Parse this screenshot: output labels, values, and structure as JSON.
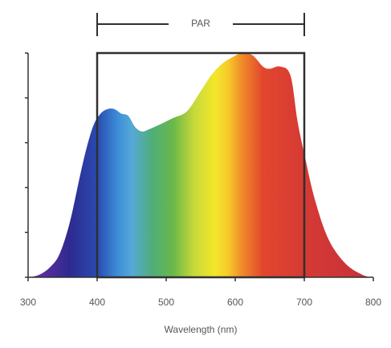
{
  "chart_data": {
    "type": "area",
    "title": "",
    "xlabel": "Wavelength (nm)",
    "ylabel": "",
    "xlim": [
      300,
      800
    ],
    "ylim": [
      0,
      1
    ],
    "xticks": [
      300,
      400,
      500,
      600,
      700,
      800
    ],
    "tick_labels": [
      "300",
      "400",
      "500",
      "600",
      "700",
      "800"
    ],
    "ytick_count": 6,
    "grid": false,
    "legend": "none",
    "par_band": {
      "label": "PAR",
      "range": [
        400,
        700
      ]
    },
    "series": [
      {
        "x": [
          300,
          315,
          330,
          345,
          360,
          375,
          385,
          395,
          405,
          415,
          425,
          435,
          445,
          455,
          465,
          475,
          490,
          510,
          530,
          550,
          565,
          580,
          595,
          610,
          625,
          640,
          650,
          665,
          680,
          690,
          700,
          715,
          735,
          760,
          785,
          800
        ],
        "y": [
          0.0,
          0.01,
          0.04,
          0.1,
          0.24,
          0.45,
          0.58,
          0.68,
          0.73,
          0.75,
          0.75,
          0.73,
          0.72,
          0.67,
          0.65,
          0.66,
          0.68,
          0.71,
          0.74,
          0.83,
          0.9,
          0.95,
          0.98,
          1.0,
          0.99,
          0.94,
          0.93,
          0.94,
          0.9,
          0.7,
          0.55,
          0.35,
          0.17,
          0.06,
          0.01,
          0.0
        ]
      }
    ],
    "colors": {
      "axis": "#333333",
      "par_box": "#2f2f2f",
      "tick_text": "#555555",
      "spectrum": [
        {
          "nm": 300,
          "color": "#7a2ea6"
        },
        {
          "nm": 360,
          "color": "#2d2a8f"
        },
        {
          "nm": 400,
          "color": "#2a4ab0"
        },
        {
          "nm": 430,
          "color": "#3d8ed8"
        },
        {
          "nm": 450,
          "color": "#56a8d8"
        },
        {
          "nm": 480,
          "color": "#4fae78"
        },
        {
          "nm": 510,
          "color": "#6ab84a"
        },
        {
          "nm": 540,
          "color": "#c6d83b"
        },
        {
          "nm": 570,
          "color": "#f2e72a"
        },
        {
          "nm": 590,
          "color": "#f7c92a"
        },
        {
          "nm": 610,
          "color": "#f08a2a"
        },
        {
          "nm": 640,
          "color": "#e2462e"
        },
        {
          "nm": 700,
          "color": "#d53a34"
        },
        {
          "nm": 800,
          "color": "#c5303a"
        }
      ]
    }
  }
}
